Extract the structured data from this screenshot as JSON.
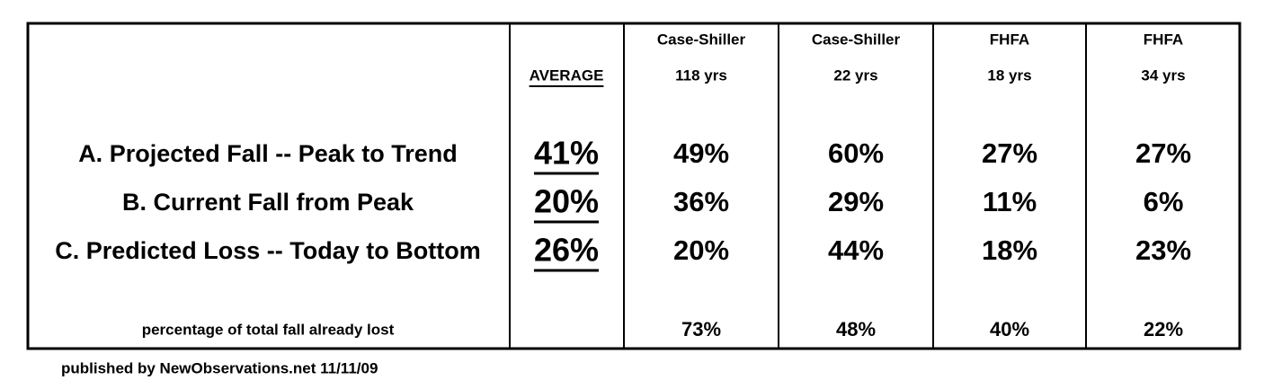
{
  "table": {
    "columns": [
      {
        "title": "AVERAGE"
      },
      {
        "title": "Case-Shiller",
        "subtitle": "118 yrs"
      },
      {
        "title": "Case-Shiller",
        "subtitle": "22 yrs"
      },
      {
        "title": "FHFA",
        "subtitle": "18 yrs"
      },
      {
        "title": "FHFA",
        "subtitle": "34 yrs"
      }
    ],
    "rows": [
      {
        "label": "A. Projected Fall -- Peak to Trend",
        "values": [
          "41%",
          "49%",
          "60%",
          "27%",
          "27%"
        ]
      },
      {
        "label": "B. Current Fall from Peak",
        "values": [
          "20%",
          "36%",
          "29%",
          "11%",
          "6%"
        ]
      },
      {
        "label": "C. Predicted Loss -- Today to Bottom",
        "values": [
          "26%",
          "20%",
          "44%",
          "18%",
          "23%"
        ]
      }
    ],
    "summary": {
      "label": "percentage of total fall already lost",
      "values": [
        "73%",
        "48%",
        "40%",
        "22%"
      ]
    }
  },
  "footer": "published by NewObservations.net 11/11/09"
}
